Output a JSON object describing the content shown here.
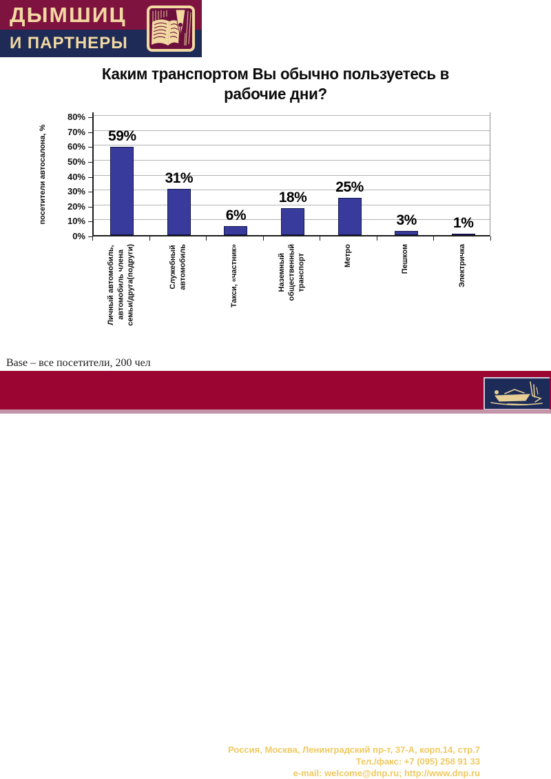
{
  "logo": {
    "line1": "ДЫМШИЦ",
    "line2": "И ПАРТНЕРЫ",
    "emblem": "pen-nib-and-book-woodcut"
  },
  "title": "Каким транспортом Вы обычно пользуетесь в\nрабочие дни?",
  "chart_data": {
    "type": "bar",
    "title": "Каким транспортом Вы обычно пользуетесь в рабочие дни?",
    "xlabel": "",
    "ylabel": "посетители автосалона, %",
    "categories": [
      "Личный автомобиль,\nавтомобиль члена\nсемьи/друга(подруги)",
      "Служебный\nавтомобиль",
      "Такси, «частник»",
      "Наземный\nобщественный\nтранспорт",
      "Метро",
      "Пешком",
      "Электричка"
    ],
    "values": [
      59,
      31,
      6,
      18,
      25,
      3,
      1
    ],
    "value_labels": [
      "59%",
      "31%",
      "6%",
      "18%",
      "25%",
      "3%",
      "1%"
    ],
    "ylim": [
      0,
      80
    ],
    "ytick_step": 10,
    "ytick_suffix": "%",
    "grid": true,
    "legend": "none",
    "bar_color": "#383b9b"
  },
  "base_note": "Base – все посетители, 200 чел",
  "footer": {
    "address": "Россия, Москва, Ленинградский пр-т, 37-А, корп.14, стр.7",
    "phone": "Тел./факс: +7 (095) 258 91 33",
    "email": "e-mail: welcome@dnp.ru; http://www.dnp.ru",
    "emblem": "writing-desk-engraving"
  },
  "colors": {
    "header_maroon": "#7e1340",
    "header_navy": "#1e2b57",
    "cream": "#f2d9a2",
    "footer_maroon": "#9a0532",
    "footer_gold": "#efc95f",
    "bar_blue": "#383b9b",
    "gridline_gray": "#b3b3b3",
    "bottom_strip_pink": "#c495a8"
  }
}
